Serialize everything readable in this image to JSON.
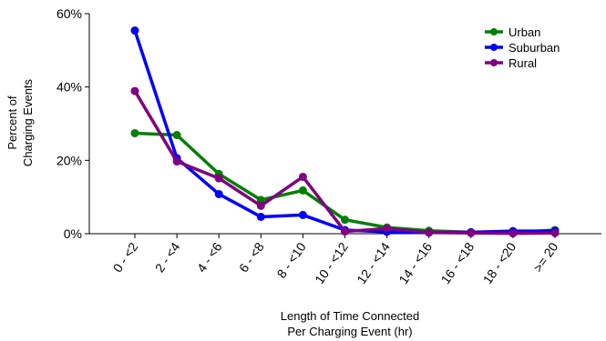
{
  "chart_data": {
    "type": "line",
    "title": "",
    "xlabel": [
      "Length of Time Connected",
      "Per Charging Event (hr)"
    ],
    "ylabel": [
      "Percent of",
      "Charging Events"
    ],
    "ylim": [
      0,
      60
    ],
    "yticks": [
      {
        "value": 0,
        "label": "0%"
      },
      {
        "value": 20,
        "label": "20%"
      },
      {
        "value": 40,
        "label": "40%"
      },
      {
        "value": 60,
        "label": "60%"
      }
    ],
    "categories": [
      "0 - <2",
      "2 - <4",
      "4 - <6",
      "6 - <8",
      "8 - <10",
      "10 - <12",
      "12 - <14",
      "14 - <16",
      "16 - <18",
      "18 - <20",
      ">= 20"
    ],
    "legend_position": "top-right",
    "grid": false,
    "series": [
      {
        "name": "Urban",
        "color": "#008000",
        "values": [
          27.4,
          26.9,
          16.3,
          9.2,
          11.8,
          3.8,
          1.7,
          0.8,
          0.4,
          0.3,
          1.0
        ]
      },
      {
        "name": "Suburban",
        "color": "#0000ff",
        "values": [
          55.4,
          20.6,
          10.8,
          4.6,
          5.1,
          1.0,
          0.5,
          0.3,
          0.4,
          0.7,
          0.7
        ]
      },
      {
        "name": "Rural",
        "color": "#800080",
        "values": [
          38.9,
          19.7,
          15.1,
          7.6,
          15.5,
          0.6,
          1.4,
          0.3,
          0.2,
          0.1,
          0.2
        ]
      }
    ]
  }
}
